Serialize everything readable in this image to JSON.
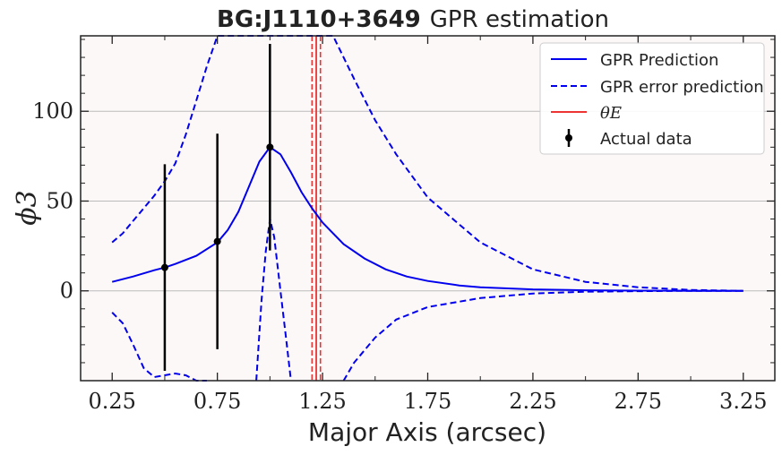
{
  "chart_data": {
    "type": "line",
    "title_bold": "BG:J1110+3649",
    "title_rest": "GPR estimation",
    "xlabel": "Major Axis (arcsec)",
    "ylabel": "ϕ3",
    "xlim": [
      0.1,
      3.4
    ],
    "ylim": [
      -50,
      142
    ],
    "x_ticks": [
      0.25,
      0.75,
      1.25,
      1.75,
      2.25,
      2.75,
      3.25
    ],
    "x_tick_labels": [
      "0.25",
      "0.75",
      "1.25",
      "1.75",
      "2.25",
      "2.75",
      "3.25"
    ],
    "y_ticks": [
      0,
      50,
      100
    ],
    "y_tick_labels": [
      "0",
      "50",
      "100"
    ],
    "grid": "horizontal",
    "legend_position": "top-right",
    "colors": {
      "prediction": "#0000ee",
      "error": "#0000ee",
      "theta": "#ee3333",
      "data": "#000000",
      "background": "#fdf8f8"
    },
    "prediction": {
      "name": "GPR Prediction",
      "x": [
        0.25,
        0.35,
        0.45,
        0.5,
        0.55,
        0.65,
        0.75,
        0.8,
        0.85,
        0.9,
        0.95,
        1.0,
        1.05,
        1.1,
        1.15,
        1.2,
        1.25,
        1.35,
        1.45,
        1.55,
        1.65,
        1.75,
        1.9,
        2.0,
        2.25,
        2.5,
        2.75,
        3.0,
        3.25
      ],
      "y": [
        5,
        8,
        11.5,
        13,
        15,
        19.5,
        27,
        34,
        44,
        58,
        72,
        80,
        76,
        66,
        55,
        46,
        38,
        26,
        18,
        12,
        8,
        5.5,
        3,
        2,
        0.8,
        0.3,
        0.1,
        0,
        0
      ]
    },
    "error_upper": {
      "name": "GPR error prediction",
      "x": [
        0.25,
        0.3,
        0.35,
        0.4,
        0.45,
        0.5,
        0.55,
        0.6,
        0.65,
        0.7,
        0.75,
        1.3,
        1.35,
        1.4,
        1.5,
        1.6,
        1.75,
        2.0,
        2.25,
        2.5,
        2.75,
        3.0,
        3.25
      ],
      "y": [
        27,
        32,
        39,
        46,
        53,
        61,
        71,
        87,
        106,
        125,
        142,
        142,
        130,
        118,
        95,
        76,
        52,
        27,
        12,
        5,
        2,
        0.5,
        0
      ]
    },
    "error_lower_a": {
      "x": [
        0.25,
        0.3,
        0.35,
        0.4,
        0.45,
        0.5,
        0.55,
        0.6,
        0.65,
        0.7
      ],
      "y": [
        -12,
        -18,
        -30,
        -43,
        -48,
        -47,
        -46,
        -47,
        -50,
        -50
      ]
    },
    "error_lower_b": {
      "x": [
        0.935,
        0.96,
        0.98,
        1.0,
        1.02,
        1.05,
        1.08,
        1.1
      ],
      "y": [
        -50,
        -5,
        22,
        40,
        30,
        0,
        -30,
        -50
      ]
    },
    "error_lower_c": {
      "x": [
        1.35,
        1.4,
        1.5,
        1.6,
        1.75,
        2.0,
        2.25,
        2.5,
        2.75,
        3.0,
        3.25
      ],
      "y": [
        -50,
        -40,
        -26,
        -16,
        -9,
        -4,
        -1.5,
        -0.5,
        -0.2,
        0,
        0
      ]
    },
    "theta_e": {
      "name": "θE",
      "center": 1.22,
      "bounds": [
        1.2,
        1.24
      ]
    },
    "actual_data": {
      "name": "Actual data",
      "x": [
        0.5,
        0.75,
        1.0
      ],
      "y": [
        13,
        27.5,
        80
      ],
      "yerr": [
        57.5,
        60,
        57.5
      ]
    }
  }
}
